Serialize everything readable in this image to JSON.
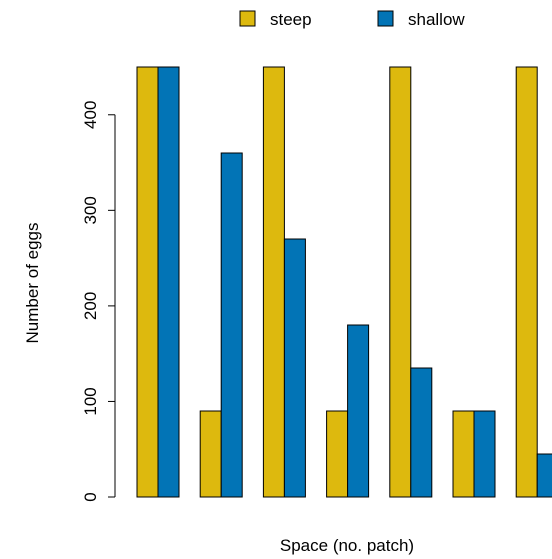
{
  "chart_data": {
    "type": "bar",
    "xlabel": "Space (no. patch)",
    "ylabel": "Number of eggs",
    "ylim": [
      0,
      450
    ],
    "yticks": [
      0,
      100,
      200,
      300,
      400
    ],
    "legend_position": "top",
    "grid": false,
    "series": [
      {
        "name": "steep",
        "color": "#DDB90E",
        "values": [
          450,
          90,
          450,
          90,
          450,
          90,
          450
        ]
      },
      {
        "name": "shallow",
        "color": "#0274B6",
        "values": [
          450,
          360,
          270,
          180,
          135,
          90,
          45
        ]
      }
    ]
  }
}
